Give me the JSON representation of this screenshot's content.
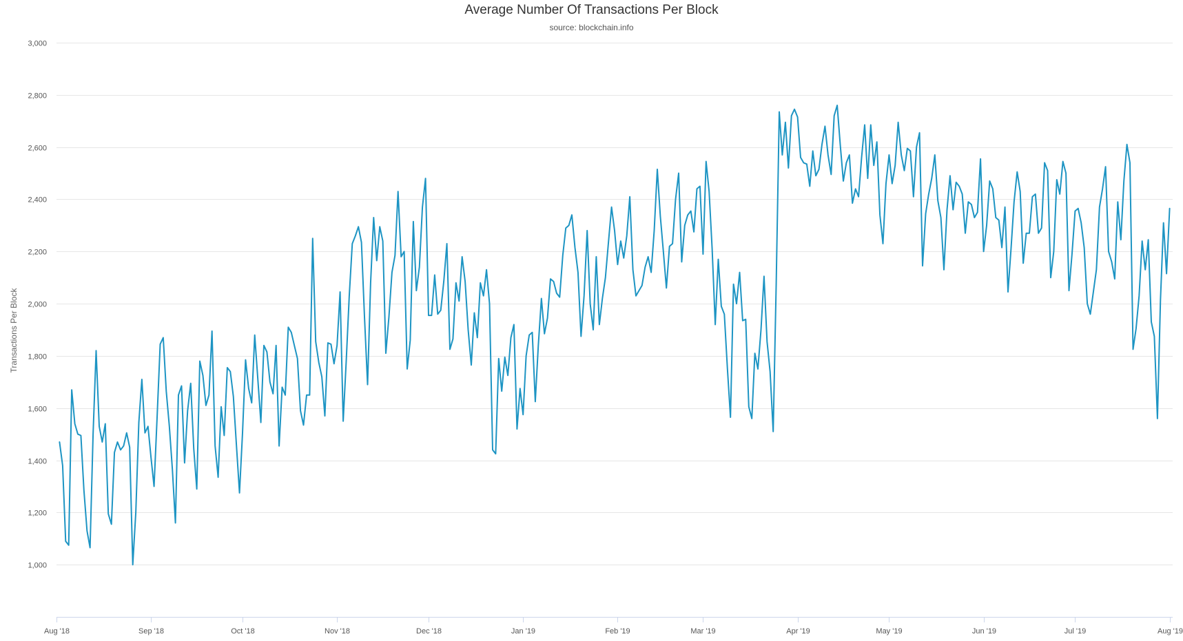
{
  "chart_data": {
    "type": "line",
    "title": "Average Number Of Transactions Per Block",
    "subtitle": "source: blockchain.info",
    "xlabel": "",
    "ylabel": "Transactions Per Block",
    "ylim": [
      800,
      3000
    ],
    "y_ticks": [
      1000,
      1200,
      1400,
      1600,
      1800,
      2000,
      2200,
      2400,
      2600,
      2800,
      3000
    ],
    "y_tick_labels": [
      "1,000",
      "1,200",
      "1,400",
      "1,600",
      "1,800",
      "2,000",
      "2,200",
      "2,400",
      "2,600",
      "2,800",
      "3,000"
    ],
    "x_range": [
      "2018-08-01",
      "2019-08-02"
    ],
    "x_ticks": [
      {
        "date": "2018-08-01",
        "label": "Aug '18"
      },
      {
        "date": "2018-09-01",
        "label": "Sep '18"
      },
      {
        "date": "2018-10-01",
        "label": "Oct '18"
      },
      {
        "date": "2018-11-01",
        "label": "Nov '18"
      },
      {
        "date": "2018-12-01",
        "label": "Dec '18"
      },
      {
        "date": "2019-01-01",
        "label": "Jan '19"
      },
      {
        "date": "2019-02-01",
        "label": "Feb '19"
      },
      {
        "date": "2019-03-01",
        "label": "Mar '19"
      },
      {
        "date": "2019-04-01",
        "label": "Apr '19"
      },
      {
        "date": "2019-05-01",
        "label": "May '19"
      },
      {
        "date": "2019-06-01",
        "label": "Jun '19"
      },
      {
        "date": "2019-07-01",
        "label": "Jul '19"
      },
      {
        "date": "2019-08-01",
        "label": "Aug '19"
      }
    ],
    "grid": true,
    "legend": "none",
    "line_color": "#1d94c3",
    "series": [
      {
        "x_start": "2018-08-02",
        "x_step_days": 1,
        "values": [
          1470,
          1380,
          1090,
          1075,
          1670,
          1540,
          1500,
          1495,
          1285,
          1130,
          1065,
          1500,
          1820,
          1530,
          1470,
          1540,
          1195,
          1155,
          1430,
          1470,
          1440,
          1455,
          1505,
          1450,
          1000,
          1200,
          1545,
          1710,
          1505,
          1530,
          1410,
          1300,
          1570,
          1845,
          1870,
          1665,
          1530,
          1365,
          1160,
          1650,
          1685,
          1390,
          1590,
          1695,
          1445,
          1290,
          1780,
          1725,
          1610,
          1650,
          1895,
          1455,
          1335,
          1605,
          1495,
          1755,
          1740,
          1645,
          1460,
          1275,
          1505,
          1785,
          1675,
          1620,
          1880,
          1715,
          1545,
          1840,
          1815,
          1700,
          1655,
          1840,
          1455,
          1680,
          1650,
          1910,
          1890,
          1840,
          1790,
          1590,
          1535,
          1650,
          1650,
          2250,
          1855,
          1775,
          1720,
          1570,
          1850,
          1845,
          1770,
          1840,
          2045,
          1550,
          1780,
          2030,
          2230,
          2260,
          2295,
          2235,
          1950,
          1690,
          2080,
          2330,
          2165,
          2295,
          2240,
          1810,
          1950,
          2120,
          2185,
          2430,
          2180,
          2200,
          1750,
          1860,
          2315,
          2050,
          2140,
          2370,
          2480,
          1955,
          1955,
          2110,
          1960,
          1975,
          2085,
          2230,
          1825,
          1865,
          2080,
          2010,
          2180,
          2085,
          1900,
          1765,
          1965,
          1870,
          2080,
          2030,
          2130,
          2000,
          1440,
          1425,
          1790,
          1665,
          1795,
          1725,
          1870,
          1920,
          1520,
          1675,
          1575,
          1800,
          1880,
          1890,
          1625,
          1840,
          2020,
          1885,
          1945,
          2095,
          2085,
          2040,
          2025,
          2185,
          2290,
          2300,
          2340,
          2215,
          2120,
          1875,
          2030,
          2280,
          2000,
          1900,
          2180,
          1920,
          2020,
          2100,
          2235,
          2370,
          2280,
          2150,
          2240,
          2175,
          2260,
          2410,
          2130,
          2030,
          2050,
          2070,
          2140,
          2180,
          2120,
          2280,
          2515,
          2335,
          2200,
          2060,
          2220,
          2230,
          2400,
          2500,
          2160,
          2300,
          2340,
          2355,
          2275,
          2440,
          2450,
          2190,
          2545,
          2430,
          2210,
          1920,
          2170,
          1990,
          1960,
          1750,
          1565,
          2075,
          2000,
          2120,
          1935,
          1940,
          1605,
          1560,
          1810,
          1750,
          1900,
          2105,
          1855,
          1740,
          1510,
          2080,
          2735,
          2570,
          2695,
          2520,
          2720,
          2745,
          2715,
          2560,
          2540,
          2535,
          2450,
          2585,
          2490,
          2515,
          2610,
          2680,
          2570,
          2495,
          2720,
          2760,
          2610,
          2470,
          2540,
          2570,
          2385,
          2440,
          2410,
          2560,
          2685,
          2480,
          2685,
          2530,
          2620,
          2340,
          2230,
          2460,
          2570,
          2460,
          2530,
          2695,
          2570,
          2510,
          2595,
          2585,
          2410,
          2600,
          2655,
          2145,
          2345,
          2420,
          2480,
          2570,
          2395,
          2330,
          2130,
          2360,
          2490,
          2360,
          2465,
          2450,
          2420,
          2270,
          2390,
          2380,
          2330,
          2350,
          2555,
          2200,
          2300,
          2470,
          2440,
          2330,
          2320,
          2215,
          2370,
          2045,
          2210,
          2390,
          2505,
          2430,
          2155,
          2270,
          2270,
          2410,
          2420,
          2270,
          2290,
          2540,
          2510,
          2100,
          2200,
          2475,
          2420,
          2545,
          2500,
          2050,
          2190,
          2355,
          2365,
          2310,
          2215,
          2000,
          1960,
          2045,
          2130,
          2370,
          2440,
          2525,
          2200,
          2160,
          2095,
          2390,
          2245,
          2470,
          2610,
          2540,
          1825,
          1905,
          2030,
          2240,
          2130,
          2245,
          1930,
          1875,
          1560,
          2015,
          2310,
          2115,
          2365
        ]
      }
    ]
  }
}
